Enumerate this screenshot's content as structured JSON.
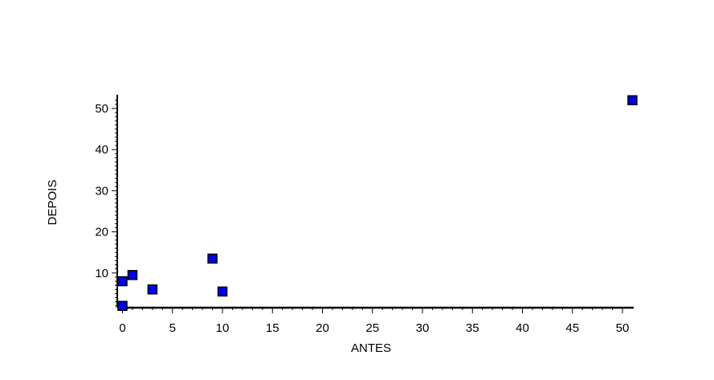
{
  "chart_data": {
    "type": "scatter",
    "title": "",
    "xlabel": "ANTES",
    "ylabel": "DEPOIS",
    "xlim": [
      -0.5,
      51
    ],
    "ylim": [
      1,
      53
    ],
    "xticks": [
      0,
      5,
      10,
      15,
      20,
      25,
      30,
      35,
      40,
      45,
      50
    ],
    "yticks": [
      10,
      20,
      30,
      40,
      50
    ],
    "grid": false,
    "marker": "square",
    "marker_color": "#0000ee",
    "points": [
      {
        "x": 0,
        "y": 2
      },
      {
        "x": 0,
        "y": 8
      },
      {
        "x": 1,
        "y": 9.5
      },
      {
        "x": 3,
        "y": 6
      },
      {
        "x": 9,
        "y": 13.5
      },
      {
        "x": 10,
        "y": 5.5
      },
      {
        "x": 51,
        "y": 52
      }
    ]
  }
}
